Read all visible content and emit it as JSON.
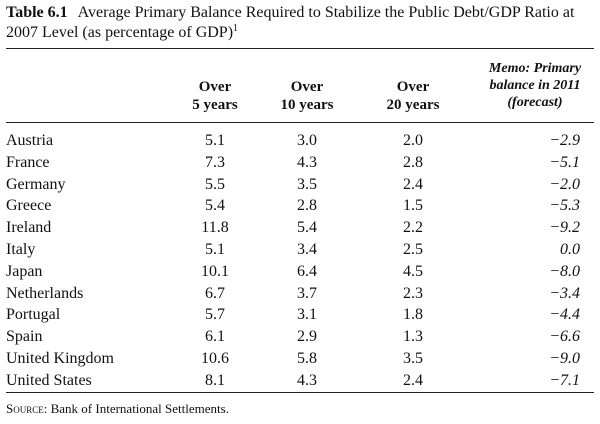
{
  "caption": {
    "table_number": "Table 6.1",
    "title": "Average Primary Balance Required to Stabilize the Public Debt/GDP Ratio at 2007 Level (as percentage of GDP)",
    "footnote_mark": "1"
  },
  "headers": {
    "col1": [
      "Over",
      "5 years"
    ],
    "col2": [
      "Over",
      "10 years"
    ],
    "col3": [
      "Over",
      "20 years"
    ],
    "col4": [
      "Memo: Primary",
      "balance in 2011",
      "(forecast)"
    ]
  },
  "rows": [
    {
      "country": "Austria",
      "v5": "5.1",
      "v10": "3.0",
      "v20": "2.0",
      "memo": "−2.9"
    },
    {
      "country": "France",
      "v5": "7.3",
      "v10": "4.3",
      "v20": "2.8",
      "memo": "−5.1"
    },
    {
      "country": "Germany",
      "v5": "5.5",
      "v10": "3.5",
      "v20": "2.4",
      "memo": "−2.0"
    },
    {
      "country": "Greece",
      "v5": "5.4",
      "v10": "2.8",
      "v20": "1.5",
      "memo": "−5.3"
    },
    {
      "country": "Ireland",
      "v5": "11.8",
      "v10": "5.4",
      "v20": "2.2",
      "memo": "−9.2"
    },
    {
      "country": "Italy",
      "v5": "5.1",
      "v10": "3.4",
      "v20": "2.5",
      "memo": "0.0"
    },
    {
      "country": "Japan",
      "v5": "10.1",
      "v10": "6.4",
      "v20": "4.5",
      "memo": "−8.0"
    },
    {
      "country": "Netherlands",
      "v5": "6.7",
      "v10": "3.7",
      "v20": "2.3",
      "memo": "−3.4"
    },
    {
      "country": "Portugal",
      "v5": "5.7",
      "v10": "3.1",
      "v20": "1.8",
      "memo": "−4.4"
    },
    {
      "country": "Spain",
      "v5": "6.1",
      "v10": "2.9",
      "v20": "1.3",
      "memo": "−6.6"
    },
    {
      "country": "United Kingdom",
      "v5": "10.6",
      "v10": "5.8",
      "v20": "3.5",
      "memo": "−9.0"
    },
    {
      "country": "United States",
      "v5": "8.1",
      "v10": "4.3",
      "v20": "2.4",
      "memo": "−7.1"
    }
  ],
  "source": {
    "label": "Source:",
    "text": "Bank of International Settlements."
  }
}
